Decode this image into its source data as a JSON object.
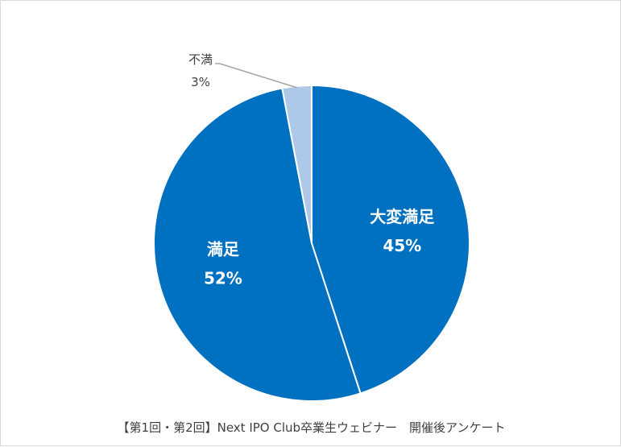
{
  "chart_data": {
    "type": "pie",
    "title": "",
    "categories": [
      "大変満足",
      "満足",
      "不満"
    ],
    "values": [
      45,
      52,
      3
    ],
    "labels": [
      "45%",
      "52%",
      "3%"
    ],
    "colors": [
      "#0070c0",
      "#0070c0",
      "#adc8e8"
    ],
    "edge_color": "#ffffff",
    "leader_line_color": "#a6a6a6"
  },
  "caption": "【第1回・第2回】Next IPO Club卒業生ウェビナー　開催後アンケート"
}
